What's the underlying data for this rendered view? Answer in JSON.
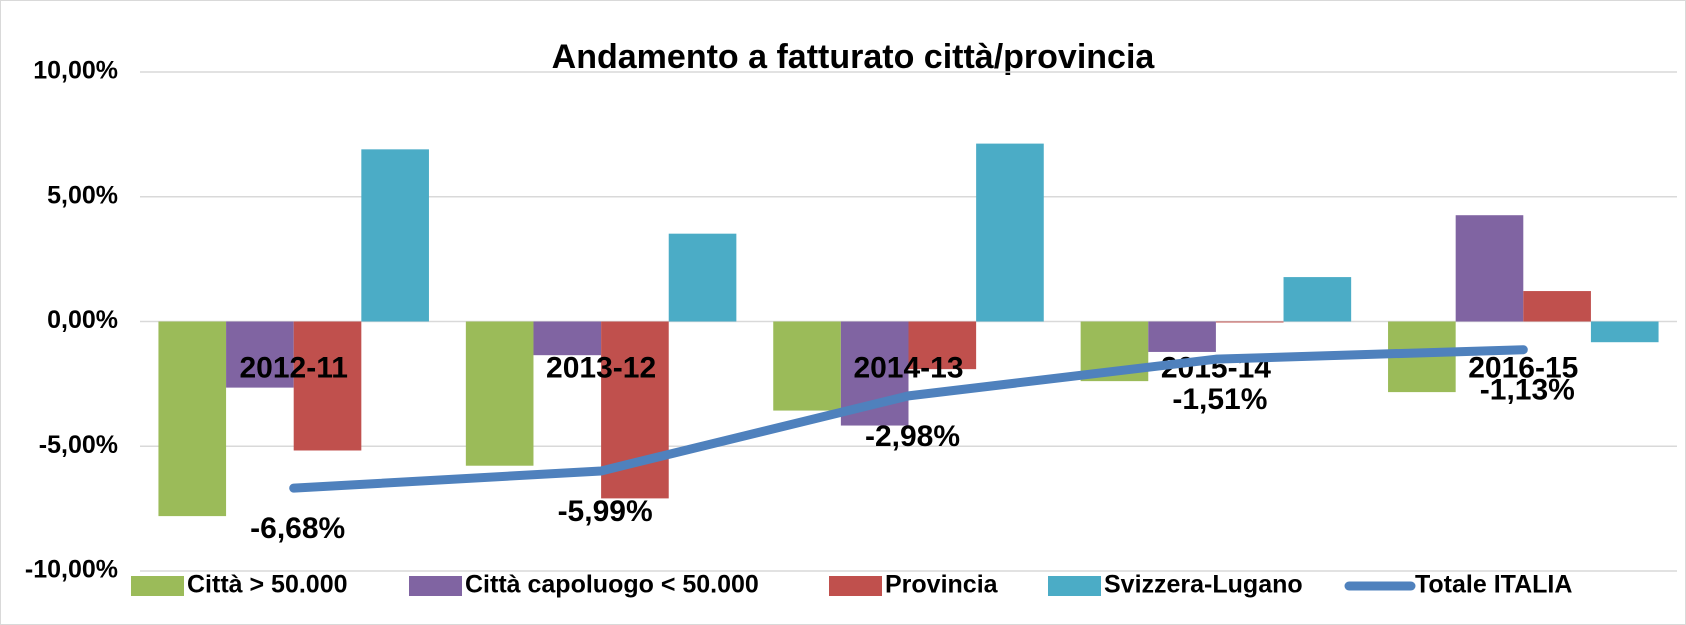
{
  "chart_data": {
    "type": "bar",
    "title": "Andamento a fatturato città/provincia",
    "categories": [
      "2012-11",
      "2013-12",
      "2014-13",
      "2015-14",
      "2016-15"
    ],
    "series": [
      {
        "name": "Città > 50.000",
        "color": "#9bbb59",
        "values": [
          -7.8,
          -5.78,
          -3.57,
          -2.39,
          -2.83
        ]
      },
      {
        "name": "Città capoluogo < 50.000",
        "color": "#8064a2",
        "values": [
          -2.65,
          -1.35,
          -4.17,
          -1.22,
          4.26
        ]
      },
      {
        "name": "Provincia",
        "color": "#c0504d",
        "values": [
          -5.17,
          -7.09,
          -1.91,
          -0.04,
          1.22
        ]
      },
      {
        "name": "Svizzera-Lugano",
        "color": "#4bacc6",
        "values": [
          6.9,
          3.52,
          7.13,
          1.78,
          -0.83
        ]
      },
      {
        "name": "Totale ITALIA",
        "type": "line",
        "color": "#4f81bd",
        "values": [
          -6.68,
          -5.99,
          -2.98,
          -1.51,
          -1.13
        ],
        "value_labels": [
          "-6,68%",
          "-5,99%",
          "-2,98%",
          "-1,51%",
          "-1,13%"
        ]
      }
    ],
    "ylim": [
      -10,
      10
    ],
    "yticks": [
      {
        "value": -10,
        "label": "-10,00%"
      },
      {
        "value": -5,
        "label": "-5,00%"
      },
      {
        "value": 0,
        "label": "0,00%"
      },
      {
        "value": 5,
        "label": "5,00%"
      },
      {
        "value": 10,
        "label": "10,00%"
      }
    ],
    "grid": true,
    "legend": "bottom"
  }
}
